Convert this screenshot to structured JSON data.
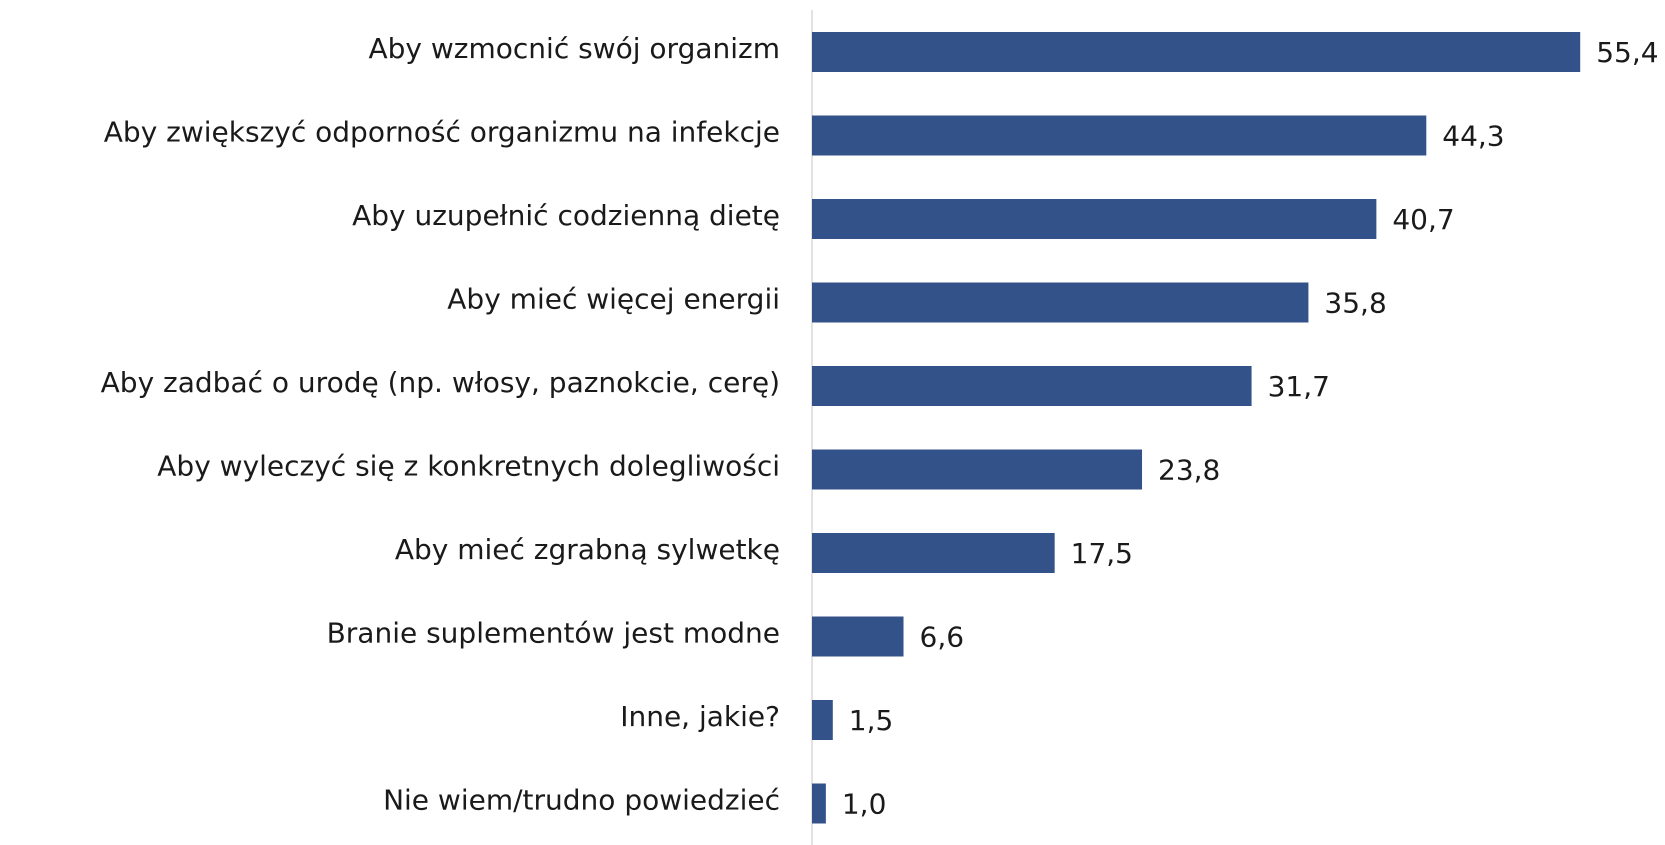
{
  "chart_data": {
    "type": "bar",
    "orientation": "horizontal",
    "categories": [
      "Aby wzmocnić swój organizm",
      "Aby zwiększyć odporność organizmu na infekcje",
      "Aby uzupełnić codzienną dietę",
      "Aby mieć więcej energii",
      "Aby zadbać o urodę (np. włosy, paznokcie, cerę)",
      "Aby wyleczyć się z konkretnych dolegliwości",
      "Aby mieć zgrabną sylwetkę",
      "Branie suplementów jest modne",
      "Inne, jakie?",
      "Nie wiem/trudno powiedzieć"
    ],
    "values": [
      55.4,
      44.3,
      40.7,
      35.8,
      31.7,
      23.8,
      17.5,
      6.6,
      1.5,
      1.0
    ],
    "value_labels": [
      "55,4",
      "44,3",
      "40,7",
      "35,8",
      "31,7",
      "23,8",
      "17,5",
      "6,6",
      "1,5",
      "1,0"
    ],
    "color": "#34528a",
    "xlim": [
      0,
      60
    ]
  }
}
